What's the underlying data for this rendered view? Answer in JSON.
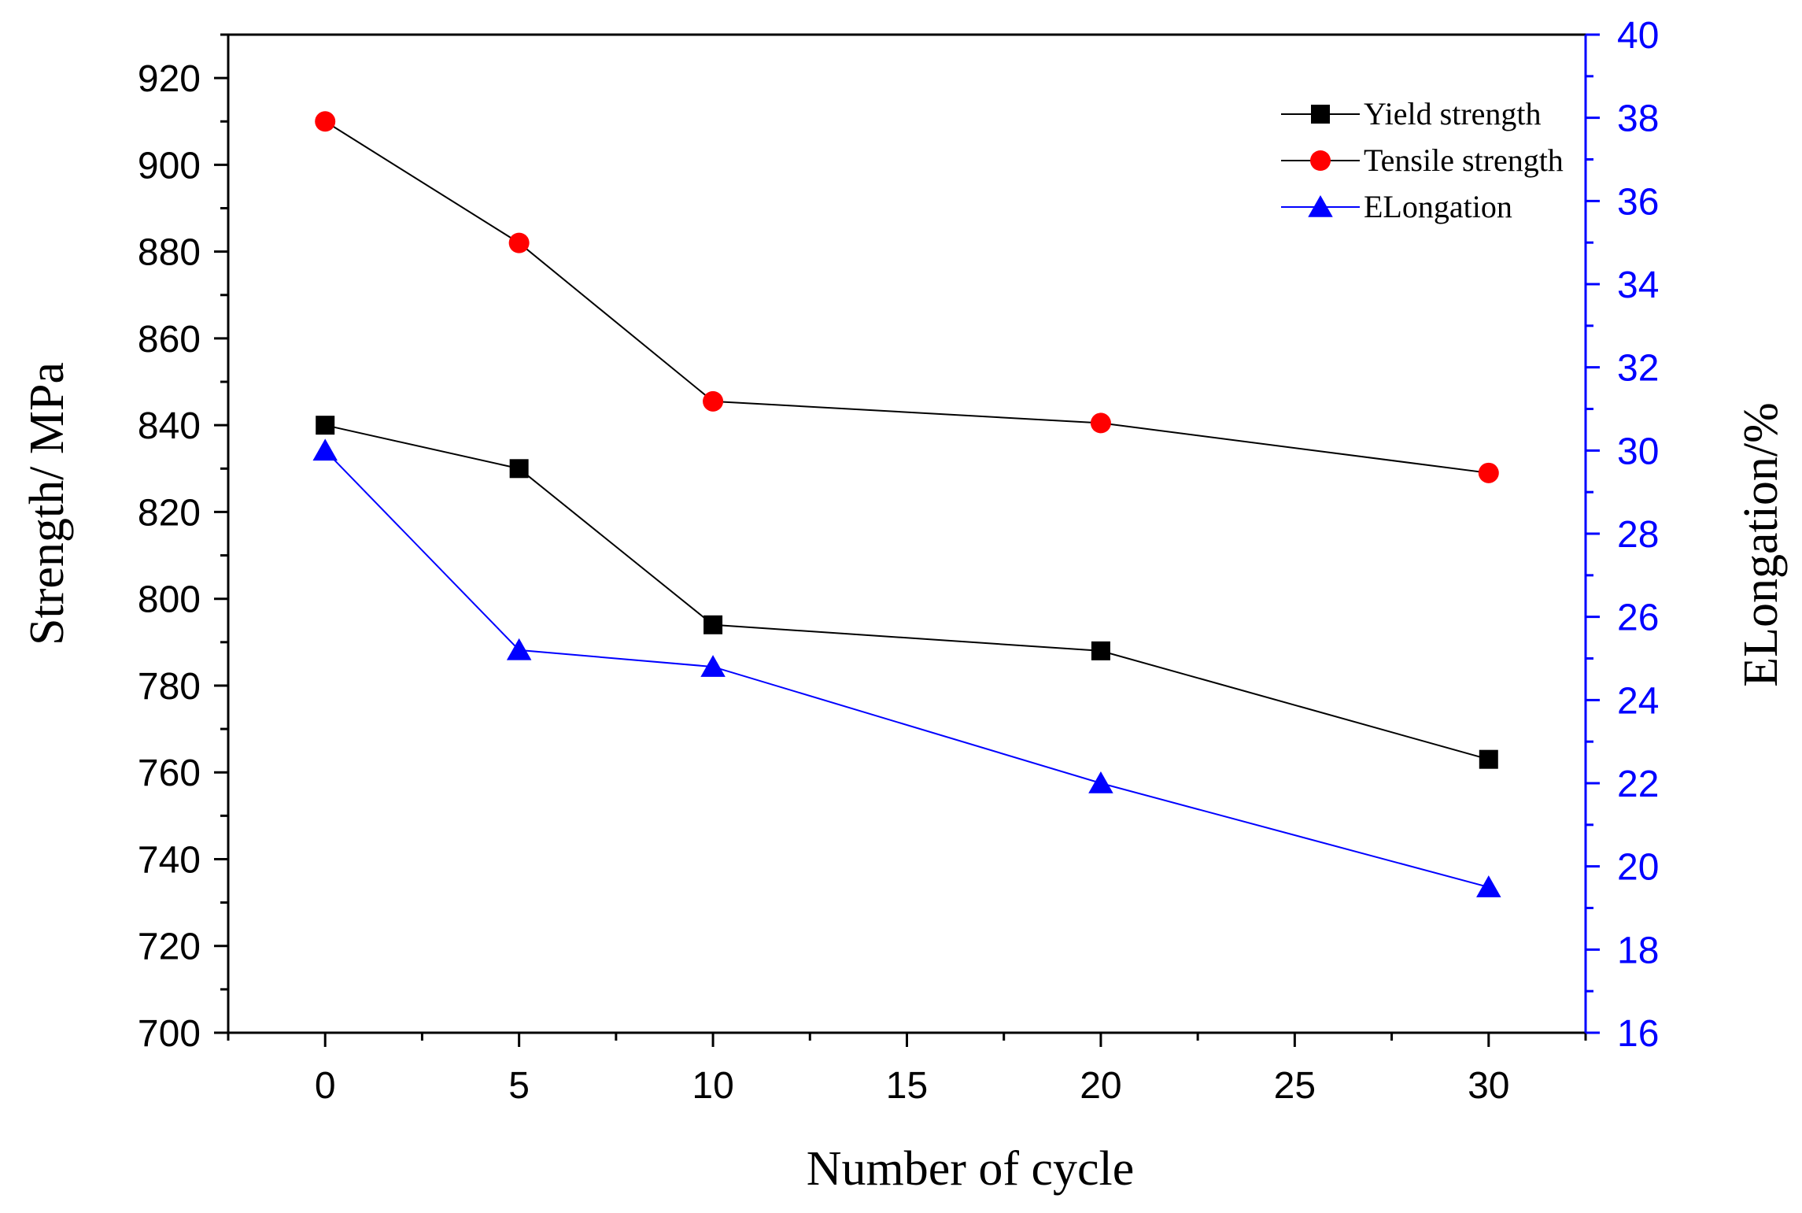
{
  "chart_data": {
    "type": "line",
    "x": [
      0,
      5,
      10,
      20,
      30
    ],
    "xlabel": "Number of cycle",
    "ylabel": "Strength/ MPa",
    "y2label": "ELongation/%",
    "xlim": [
      -2.5,
      32.5
    ],
    "ylim": [
      700,
      930
    ],
    "y2lim": [
      16,
      40
    ],
    "xticks": [
      0,
      5,
      10,
      15,
      20,
      25,
      30
    ],
    "yticks": [
      700,
      720,
      740,
      760,
      780,
      800,
      820,
      840,
      860,
      880,
      900,
      920
    ],
    "y2ticks": [
      16,
      18,
      20,
      22,
      24,
      26,
      28,
      30,
      32,
      34,
      36,
      38,
      40
    ],
    "series": [
      {
        "name": "Yield strength",
        "axis": "left",
        "marker": "square",
        "color": "#000000",
        "line_color": "#000000",
        "values": [
          840,
          830,
          794,
          788,
          763
        ]
      },
      {
        "name": "Tensile strength",
        "axis": "left",
        "marker": "circle",
        "color": "#ff0000",
        "line_color": "#000000",
        "values": [
          910,
          882,
          845.5,
          840.5,
          829
        ]
      },
      {
        "name": "ELongation",
        "axis": "right",
        "marker": "triangle",
        "color": "#0000ff",
        "line_color": "#0000ff",
        "values": [
          30,
          25.2,
          24.8,
          22,
          19.5
        ]
      }
    ],
    "legend_position": "top-right",
    "grid": false
  }
}
